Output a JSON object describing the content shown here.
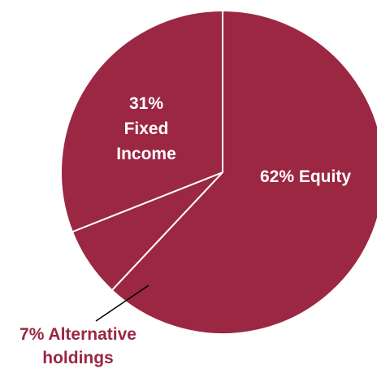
{
  "colors": {
    "slice_fill": "#9b2743",
    "slice_border": "#ffffff",
    "inside_label": "#ffffff",
    "outside_label": "#9b2743",
    "leader_line": "#000000"
  },
  "chart_data": {
    "type": "pie",
    "start": "12 o'clock",
    "direction": "clockwise",
    "slices": [
      {
        "label_lines": [
          "62% Equity"
        ],
        "value": 62,
        "label_position": "inside"
      },
      {
        "label_lines": [
          "7% Alternative",
          "holdings"
        ],
        "value": 7,
        "label_position": "outside-bottom-left"
      },
      {
        "label_lines": [
          "31%",
          "Fixed",
          "Income"
        ],
        "value": 31,
        "label_position": "inside"
      }
    ]
  }
}
